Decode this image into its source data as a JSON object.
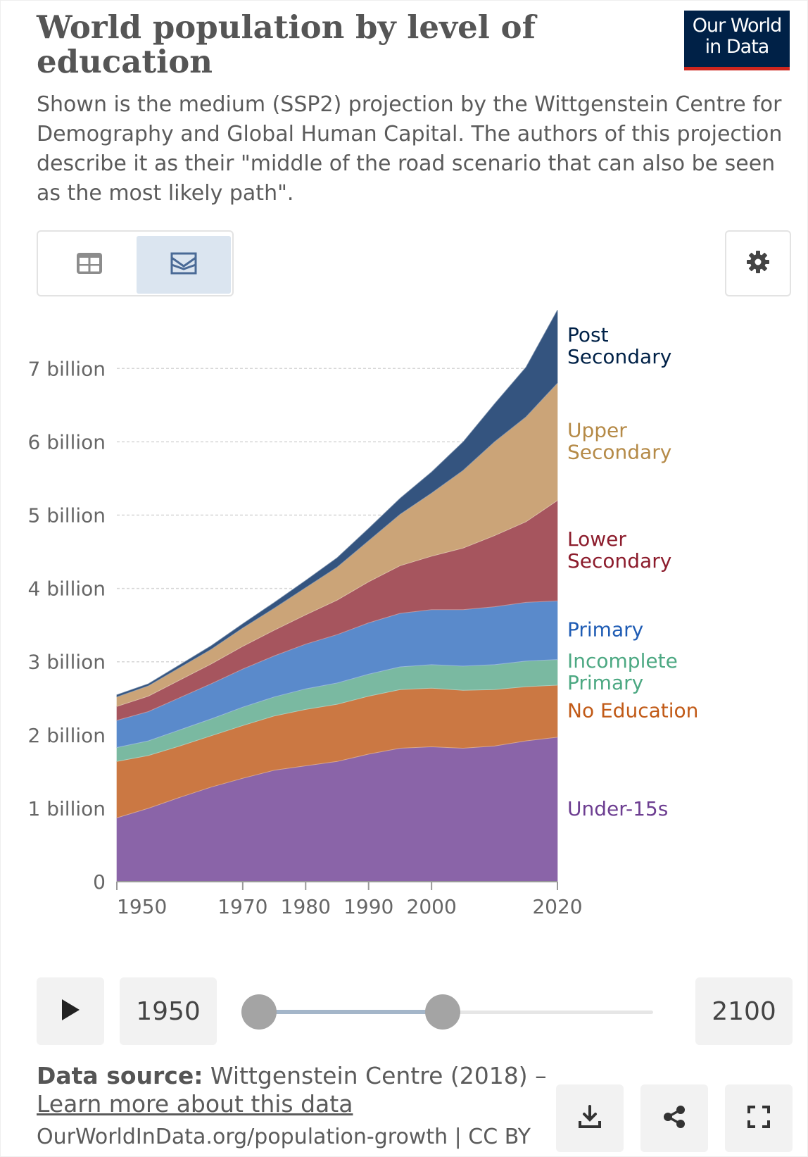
{
  "header": {
    "title": "World population by level of education",
    "subtitle": "Shown is the medium (SSP2) projection by the Wittgenstein Centre for Demography and Global Human Capital. The authors of this projection describe it as their \"middle of the road scenario that can also be seen as the most likely path\".",
    "logo_line1": "Our World",
    "logo_line2": "in Data",
    "logo_color": "#002147",
    "logo_accent": "#ce261e"
  },
  "toolbar": {
    "table_tab_icon": "table-icon",
    "chart_tab_icon": "chart-icon",
    "settings_icon": "gear-icon",
    "active_tab": "chart"
  },
  "chart_data": {
    "type": "area",
    "stacked": true,
    "x": [
      1950,
      1955,
      1960,
      1965,
      1970,
      1975,
      1980,
      1985,
      1990,
      1995,
      2000,
      2005,
      2010,
      2015,
      2020
    ],
    "ylim": [
      0,
      7800000000
    ],
    "xlim": [
      1950,
      2020
    ],
    "y_ticks": [
      0,
      1000000000,
      2000000000,
      3000000000,
      4000000000,
      5000000000,
      6000000000,
      7000000000
    ],
    "y_tick_labels": [
      "0",
      "1 billion",
      "2 billion",
      "3 billion",
      "4 billion",
      "5 billion",
      "6 billion",
      "7 billion"
    ],
    "x_ticks": [
      1950,
      1970,
      1980,
      1990,
      2000,
      2020
    ],
    "x_tick_labels": [
      "1950",
      "1970",
      "1980",
      "1990",
      "2000",
      "2020"
    ],
    "grid": "horizontal dashed",
    "legend": "right, inline labels",
    "series": [
      {
        "name": "Under-15s",
        "color": "#8a64a8",
        "label_color": "#6d3e91",
        "values": [
          870000000,
          1000000000,
          1150000000,
          1290000000,
          1410000000,
          1520000000,
          1580000000,
          1640000000,
          1740000000,
          1820000000,
          1840000000,
          1820000000,
          1850000000,
          1920000000,
          1970000000
        ]
      },
      {
        "name": "No Education",
        "color": "#cb7843",
        "label_color": "#c15a17",
        "values": [
          770000000,
          720000000,
          700000000,
          700000000,
          720000000,
          740000000,
          770000000,
          780000000,
          790000000,
          800000000,
          800000000,
          790000000,
          770000000,
          740000000,
          710000000
        ]
      },
      {
        "name": "Incomplete Primary",
        "color": "#7ab9a1",
        "label_color": "#4ca882",
        "values": [
          190000000,
          200000000,
          220000000,
          230000000,
          250000000,
          260000000,
          280000000,
          290000000,
          300000000,
          310000000,
          320000000,
          330000000,
          340000000,
          350000000,
          350000000
        ]
      },
      {
        "name": "Primary",
        "color": "#5a8acb",
        "label_color": "#1f5cb4",
        "values": [
          370000000,
          400000000,
          440000000,
          480000000,
          520000000,
          560000000,
          610000000,
          660000000,
          700000000,
          730000000,
          750000000,
          770000000,
          790000000,
          800000000,
          800000000
        ]
      },
      {
        "name": "Lower Secondary",
        "color": "#a6555e",
        "label_color": "#8c1c2c",
        "values": [
          190000000,
          210000000,
          240000000,
          270000000,
          310000000,
          350000000,
          400000000,
          470000000,
          560000000,
          650000000,
          730000000,
          840000000,
          970000000,
          1100000000,
          1370000000
        ]
      },
      {
        "name": "Upper Secondary",
        "color": "#cba478",
        "label_color": "#b58a47",
        "values": [
          130000000,
          140000000,
          170000000,
          200000000,
          250000000,
          300000000,
          370000000,
          450000000,
          560000000,
          700000000,
          860000000,
          1060000000,
          1280000000,
          1430000000,
          1600000000
        ]
      },
      {
        "name": "Post Secondary",
        "color": "#34547f",
        "label_color": "#002147",
        "values": [
          30000000,
          30000000,
          40000000,
          50000000,
          60000000,
          80000000,
          100000000,
          130000000,
          170000000,
          220000000,
          290000000,
          390000000,
          520000000,
          680000000,
          1000000000
        ]
      }
    ]
  },
  "timeline": {
    "play_icon": "play-icon",
    "start_year": "1950",
    "end_year": "2100"
  },
  "footer": {
    "source_label": "Data source:",
    "source_text": "Wittgenstein Centre (2018) –",
    "learn_more": "Learn more about this data",
    "url": "OurWorldInData.org/population-growth | CC BY",
    "download_icon": "download-icon",
    "share_icon": "share-icon",
    "fullscreen_icon": "fullscreen-icon"
  }
}
